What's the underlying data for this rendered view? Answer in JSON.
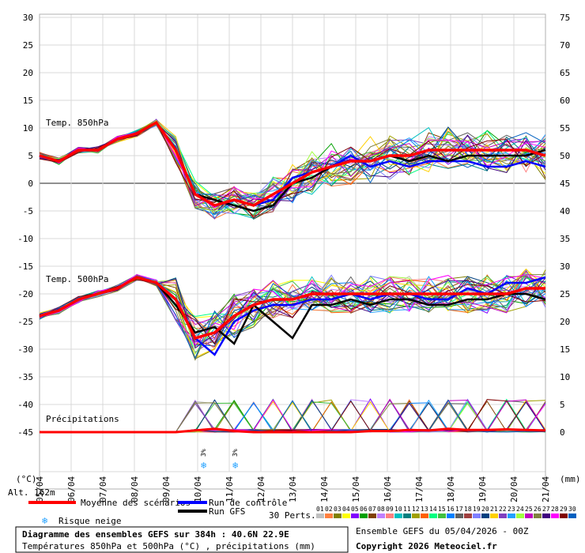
{
  "chart_data": {
    "type": "line",
    "left_axis": {
      "unit": "(°C)",
      "ticks": [
        "30",
        "25",
        "20",
        "15",
        "10",
        "5",
        "0",
        "-5",
        "-10",
        "-15",
        "-20",
        "-25",
        "-30",
        "-35",
        "-40",
        "-45"
      ]
    },
    "right_axis": {
      "unit": "(mm)",
      "ticks": [
        "75",
        "70",
        "65",
        "60",
        "55",
        "50",
        "45",
        "40",
        "35",
        "30",
        "25",
        "20",
        "15",
        "10",
        "5",
        "0"
      ]
    },
    "dates": [
      "05/04",
      "06/04",
      "07/04",
      "08/04",
      "09/04",
      "10/04",
      "11/04",
      "12/04",
      "13/04",
      "14/04",
      "15/04",
      "16/04",
      "17/04",
      "18/04",
      "19/04",
      "20/04",
      "21/04"
    ],
    "panel_labels": {
      "t850": "Temp. 850hPa",
      "t500": "Temp. 500hPa",
      "precip": "Précipitations"
    },
    "snow_marker_text": "3%",
    "snow_markers": [
      "10/04",
      "11/04"
    ],
    "mean_t850": [
      5,
      4,
      6,
      6,
      8,
      9,
      11,
      6,
      -2,
      -4,
      -3,
      -4,
      -2,
      0,
      2,
      3,
      4,
      4,
      5,
      5,
      6,
      6,
      6,
      6,
      6,
      6,
      5
    ],
    "control_t850": [
      5,
      4,
      6,
      6,
      8,
      9,
      11,
      6,
      -2,
      -4,
      -3,
      -4,
      -3,
      1,
      2,
      3,
      5,
      3,
      4,
      3,
      4,
      4,
      4,
      3,
      3,
      4,
      3
    ],
    "gfs_t850": [
      5,
      4,
      6,
      6,
      8,
      9,
      11,
      6,
      -2,
      -3,
      -4,
      -5,
      -4,
      0,
      1,
      3,
      4,
      4,
      5,
      4,
      5,
      4,
      5,
      5,
      5,
      5,
      6
    ],
    "mean_t500": [
      -24,
      -23,
      -21,
      -20,
      -19,
      -17,
      -18,
      -21,
      -28,
      -27,
      -24,
      -22,
      -21,
      -21,
      -20,
      -20,
      -20,
      -20,
      -20,
      -20,
      -20,
      -20,
      -20,
      -20,
      -20,
      -19,
      -19
    ],
    "control_t500": [
      -24,
      -23,
      -21,
      -20,
      -19,
      -17,
      -18,
      -21,
      -28,
      -31,
      -25,
      -23,
      -22,
      -22,
      -21,
      -21,
      -20,
      -21,
      -20,
      -20,
      -21,
      -21,
      -19,
      -20,
      -18,
      -18,
      -17
    ],
    "gfs_t500": [
      -24,
      -23,
      -21,
      -20,
      -19,
      -17,
      -18,
      -22,
      -27,
      -26,
      -29,
      -22,
      -25,
      -28,
      -22,
      -22,
      -21,
      -22,
      -21,
      -21,
      -22,
      -22,
      -21,
      -21,
      -20,
      -20,
      -21
    ],
    "mean_precip_mm": [
      0,
      0,
      0,
      0,
      0,
      0,
      0,
      0,
      0.3,
      0.6,
      0.2,
      0,
      0,
      0,
      0,
      0,
      0,
      0.2,
      0.2,
      0.4,
      0.3,
      0.6,
      0.4,
      0.4,
      0.5,
      0.4,
      0.3
    ]
  },
  "altitude": "Alt. 162m",
  "legend": {
    "mean": "Moyenne des scénarios",
    "control": "Run de contrôle",
    "gfs": "Run GFS",
    "snow": "Risque neige",
    "perturbations_label": "30 Perts.",
    "perturbation_numbers": [
      "01",
      "02",
      "03",
      "04",
      "05",
      "06",
      "07",
      "08",
      "09",
      "10",
      "11",
      "12",
      "13",
      "14",
      "15",
      "16",
      "17",
      "18",
      "19",
      "20",
      "21",
      "22",
      "23",
      "24",
      "25",
      "26",
      "27",
      "28",
      "29",
      "30"
    ]
  },
  "colors": {
    "mean": "#ff0000",
    "control": "#0000ff",
    "gfs": "#000000",
    "perturbations": [
      "#c0c0c0",
      "#ff8040",
      "#808000",
      "#ffff00",
      "#8000ff",
      "#00a000",
      "#804000",
      "#c080ff",
      "#ff8080",
      "#00c0c0",
      "#008080",
      "#a0a000",
      "#ff6000",
      "#00ff80",
      "#40c040",
      "#0080ff",
      "#606060",
      "#a04040",
      "#8080ff",
      "#004080",
      "#ffd000",
      "#8040c0",
      "#20a0ff",
      "#a0ff40",
      "#c000c0",
      "#808040",
      "#400080",
      "#ff00ff",
      "#800000",
      "#0060c0"
    ]
  },
  "footer": {
    "title": "Diagramme des ensembles GEFS sur 384h : 40.6N 22.9E",
    "subtitle": "Températures 850hPa et 500hPa (°C) , précipitations (mm)",
    "run": "Ensemble GEFS du 05/04/2026 - 00Z",
    "copyright": "Copyright 2026 Meteociel.fr"
  }
}
